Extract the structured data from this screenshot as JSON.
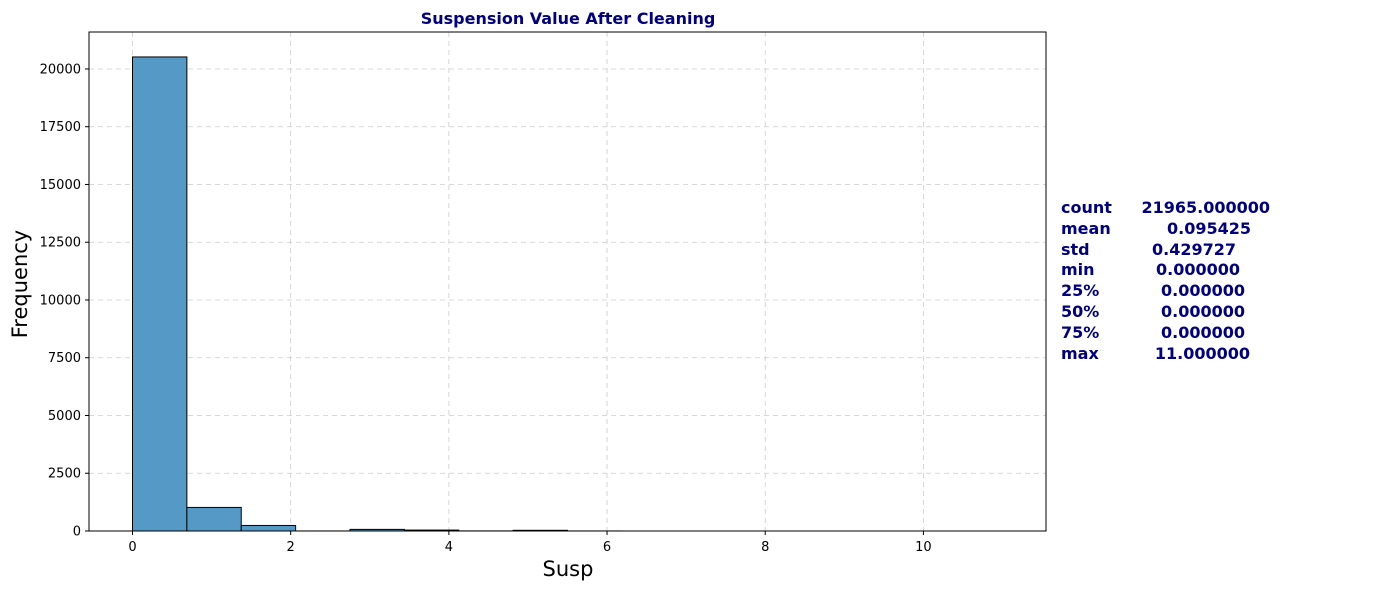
{
  "chart_data": {
    "type": "bar",
    "title": "Suspension Value After Cleaning",
    "xlabel": "Susp",
    "ylabel": "Frequency",
    "xlim": [
      -0.55,
      11.55
    ],
    "ylim": [
      0,
      21600
    ],
    "xticks": [
      0,
      2,
      4,
      6,
      8,
      10
    ],
    "yticks": [
      0,
      2500,
      5000,
      7500,
      10000,
      12500,
      15000,
      17500,
      20000
    ],
    "grid": true,
    "bin_edges": [
      0,
      0.6875,
      1.375,
      2.0625,
      2.75,
      3.4375,
      4.125,
      4.8125,
      5.5,
      6.1875,
      6.875,
      7.5625,
      8.25,
      8.9375,
      9.625,
      10.3125,
      11
    ],
    "values": [
      20520,
      1020,
      240,
      2,
      70,
      40,
      4,
      30,
      2,
      0,
      0,
      0,
      0,
      0,
      0,
      0
    ],
    "bar_color": "#5599c7",
    "title_color": "#000080"
  },
  "stats": [
    {
      "key": "count",
      "value": "21965.000000"
    },
    {
      "key": "mean",
      "value": "0.095425"
    },
    {
      "key": "std",
      "value": "0.429727"
    },
    {
      "key": "min",
      "value": "0.000000"
    },
    {
      "key": "25%",
      "value": "0.000000"
    },
    {
      "key": "50%",
      "value": "0.000000"
    },
    {
      "key": "75%",
      "value": "0.000000"
    },
    {
      "key": "max",
      "value": "11.000000"
    }
  ]
}
